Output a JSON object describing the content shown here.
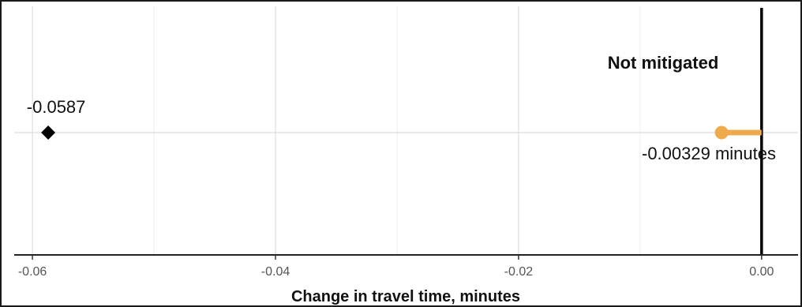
{
  "chart_data": {
    "type": "scatter",
    "title": "",
    "xlabel": "Change in travel time,  minutes",
    "ylabel": "",
    "xlim": [
      -0.0615,
      0.003
    ],
    "x_ticks": [
      -0.06,
      -0.04,
      -0.02,
      0.0
    ],
    "x_tick_labels": [
      "-0.06",
      "-0.04",
      "-0.02",
      "0.00"
    ],
    "grid": true,
    "legend": "none",
    "reference_line_x": 0.0,
    "series": [
      {
        "marker": "diamond",
        "color": "#000000",
        "points": [
          {
            "x": -0.0587,
            "label": "-0.0587"
          }
        ]
      },
      {
        "marker": "circle-with-bar-to-zero",
        "color": "#f0aa4e",
        "points": [
          {
            "x": -0.00329,
            "label": "-0.00329 minutes"
          }
        ]
      }
    ],
    "annotations": [
      {
        "text": "Not mitigated",
        "bold": true
      }
    ]
  }
}
